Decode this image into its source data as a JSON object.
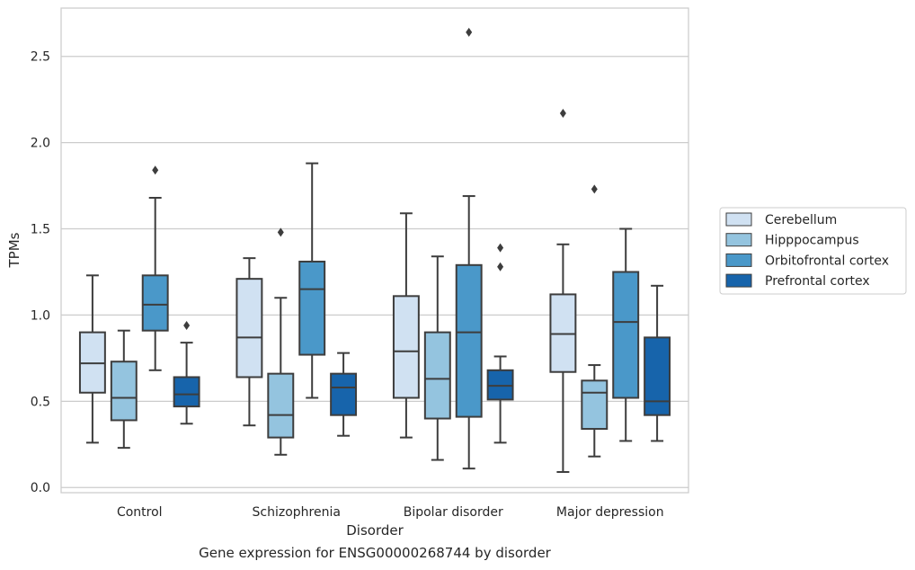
{
  "caption": "Gene expression for ENSG00000268744 by disorder",
  "chart_data": {
    "type": "box",
    "xlabel": "Disorder",
    "ylabel": "TPMs",
    "ylim": [
      -0.03,
      2.78
    ],
    "yticks": [
      0.0,
      0.5,
      1.0,
      1.5,
      2.0,
      2.5
    ],
    "ytick_labels": [
      "0.0",
      "0.5",
      "1.0",
      "1.5",
      "2.0",
      "2.5"
    ],
    "grid": "horizontal",
    "legend_position": "right",
    "categories": [
      "Control",
      "Schizophrenia",
      "Bipolar disorder",
      "Major depression"
    ],
    "series": [
      {
        "name": "Cerebellum",
        "color": "#d0e1f2",
        "boxes": [
          {
            "whislo": 0.26,
            "q1": 0.55,
            "med": 0.72,
            "q3": 0.9,
            "whishi": 1.23,
            "fliers": []
          },
          {
            "whislo": 0.36,
            "q1": 0.64,
            "med": 0.87,
            "q3": 1.21,
            "whishi": 1.33,
            "fliers": []
          },
          {
            "whislo": 0.29,
            "q1": 0.52,
            "med": 0.79,
            "q3": 1.11,
            "whishi": 1.59,
            "fliers": []
          },
          {
            "whislo": 0.09,
            "q1": 0.67,
            "med": 0.89,
            "q3": 1.12,
            "whishi": 1.41,
            "fliers": [
              2.17
            ]
          }
        ]
      },
      {
        "name": "Hipppocampus",
        "color": "#94c4df",
        "boxes": [
          {
            "whislo": 0.23,
            "q1": 0.39,
            "med": 0.52,
            "q3": 0.73,
            "whishi": 0.91,
            "fliers": []
          },
          {
            "whislo": 0.19,
            "q1": 0.29,
            "med": 0.42,
            "q3": 0.66,
            "whishi": 1.1,
            "fliers": [
              1.48
            ]
          },
          {
            "whislo": 0.16,
            "q1": 0.4,
            "med": 0.63,
            "q3": 0.9,
            "whishi": 1.34,
            "fliers": []
          },
          {
            "whislo": 0.18,
            "q1": 0.34,
            "med": 0.55,
            "q3": 0.62,
            "whishi": 0.71,
            "fliers": [
              1.73
            ]
          }
        ]
      },
      {
        "name": "Orbitofrontal cortex",
        "color": "#4a98c9",
        "boxes": [
          {
            "whislo": 0.68,
            "q1": 0.91,
            "med": 1.06,
            "q3": 1.23,
            "whishi": 1.68,
            "fliers": [
              1.84
            ]
          },
          {
            "whislo": 0.52,
            "q1": 0.77,
            "med": 1.15,
            "q3": 1.31,
            "whishi": 1.88,
            "fliers": []
          },
          {
            "whislo": 0.11,
            "q1": 0.41,
            "med": 0.9,
            "q3": 1.29,
            "whishi": 1.69,
            "fliers": [
              2.64
            ]
          },
          {
            "whislo": 0.27,
            "q1": 0.52,
            "med": 0.96,
            "q3": 1.25,
            "whishi": 1.5,
            "fliers": []
          }
        ]
      },
      {
        "name": "Prefrontal cortex",
        "color": "#1764ab",
        "boxes": [
          {
            "whislo": 0.37,
            "q1": 0.47,
            "med": 0.54,
            "q3": 0.64,
            "whishi": 0.84,
            "fliers": [
              0.94
            ]
          },
          {
            "whislo": 0.3,
            "q1": 0.42,
            "med": 0.58,
            "q3": 0.66,
            "whishi": 0.78,
            "fliers": []
          },
          {
            "whislo": 0.26,
            "q1": 0.51,
            "med": 0.59,
            "q3": 0.68,
            "whishi": 0.76,
            "fliers": [
              1.28,
              1.39
            ]
          },
          {
            "whislo": 0.27,
            "q1": 0.42,
            "med": 0.5,
            "q3": 0.87,
            "whishi": 1.17,
            "fliers": []
          }
        ]
      }
    ]
  }
}
